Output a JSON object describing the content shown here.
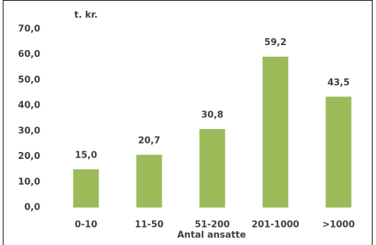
{
  "chart_data": {
    "type": "bar",
    "y_unit_label": "t. kr.",
    "x_axis_label": "Antal ansatte",
    "categories": [
      "0-10",
      "11-50",
      "51-200",
      "201-1000",
      ">1000"
    ],
    "values": [
      15.0,
      20.7,
      30.8,
      59.2,
      43.5
    ],
    "value_labels": [
      "15,0",
      "20,7",
      "30,8",
      "59,2",
      "43,5"
    ],
    "color": "#9bbb59",
    "ylim": [
      0,
      70
    ],
    "yticks": [
      {
        "value": 0,
        "label": "0,0"
      },
      {
        "value": 10,
        "label": "10,0"
      },
      {
        "value": 20,
        "label": "20,0"
      },
      {
        "value": 30,
        "label": "30,0"
      },
      {
        "value": 40,
        "label": "40,0"
      },
      {
        "value": 50,
        "label": "50,0"
      },
      {
        "value": 60,
        "label": "60,0"
      },
      {
        "value": 70,
        "label": "70,0"
      }
    ],
    "grid": false
  }
}
